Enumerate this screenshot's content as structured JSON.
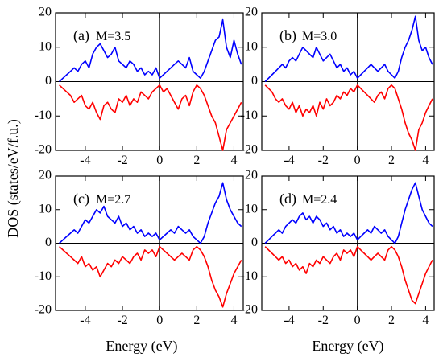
{
  "figure": {
    "ylabel": "DOS (states/eV/f.u.)",
    "xlabel": "Energy (eV)"
  },
  "chart_data": [
    {
      "type": "line",
      "panel_label": "(a)",
      "annotation": "M=3.5",
      "xlabel": "",
      "ylabel": "",
      "xlim": [
        -5.6,
        4.5
      ],
      "ylim": [
        -20,
        20
      ],
      "xticks": [
        -4,
        -2,
        0,
        2,
        4
      ],
      "yticks": [
        -20,
        -10,
        0,
        10,
        20
      ],
      "xtick_labels": [
        "-4",
        "-2",
        "0",
        "2",
        "4"
      ],
      "ytick_labels": [
        "-20",
        "-10",
        "0",
        "10",
        "20"
      ],
      "colors": {
        "up": "#0000ff",
        "down": "#ff0000"
      },
      "x": [
        -5.4,
        -5.2,
        -5.0,
        -4.8,
        -4.6,
        -4.4,
        -4.2,
        -4.0,
        -3.8,
        -3.6,
        -3.4,
        -3.2,
        -3.0,
        -2.8,
        -2.6,
        -2.4,
        -2.2,
        -2.0,
        -1.8,
        -1.6,
        -1.4,
        -1.2,
        -1.0,
        -0.8,
        -0.6,
        -0.4,
        -0.2,
        0.0,
        0.2,
        0.4,
        0.6,
        0.8,
        1.0,
        1.2,
        1.4,
        1.6,
        1.8,
        2.0,
        2.2,
        2.4,
        2.6,
        2.8,
        3.0,
        3.2,
        3.4,
        3.6,
        3.8,
        4.0,
        4.2,
        4.4
      ],
      "series": [
        {
          "values": [
            0,
            1,
            2,
            3,
            4,
            3,
            5,
            6,
            4,
            8,
            10,
            11,
            9,
            7,
            8,
            10,
            6,
            5,
            4,
            6,
            5,
            3,
            4,
            2,
            3,
            2,
            4,
            1,
            2,
            3,
            4,
            5,
            6,
            5,
            4,
            7,
            3,
            2,
            1,
            3,
            6,
            9,
            12,
            13,
            18,
            10,
            7,
            12,
            8,
            5
          ]
        },
        {
          "values": [
            -1,
            -2,
            -3,
            -4,
            -6,
            -5,
            -4,
            -7,
            -8,
            -6,
            -9,
            -11,
            -7,
            -6,
            -8,
            -9,
            -5,
            -6,
            -4,
            -7,
            -5,
            -6,
            -3,
            -4,
            -5,
            -3,
            -2,
            -1,
            -3,
            -2,
            -4,
            -6,
            -8,
            -5,
            -4,
            -7,
            -3,
            -1,
            -2,
            -4,
            -7,
            -10,
            -12,
            -16,
            -20,
            -14,
            -12,
            -10,
            -8,
            -6
          ]
        }
      ]
    },
    {
      "type": "line",
      "panel_label": "(b)",
      "annotation": "M=3.0",
      "xlabel": "",
      "ylabel": "",
      "xlim": [
        -5.6,
        4.5
      ],
      "ylim": [
        -20,
        20
      ],
      "xticks": [
        -4,
        -2,
        0,
        2,
        4
      ],
      "yticks": [
        -20,
        -10,
        0,
        10,
        20
      ],
      "xtick_labels": [
        "-4",
        "-2",
        "0",
        "2",
        "4"
      ],
      "ytick_labels": [
        "-20",
        "-10",
        "0",
        "10",
        "20"
      ],
      "colors": {
        "up": "#0000ff",
        "down": "#ff0000"
      },
      "x": [
        -5.4,
        -5.2,
        -5.0,
        -4.8,
        -4.6,
        -4.4,
        -4.2,
        -4.0,
        -3.8,
        -3.6,
        -3.4,
        -3.2,
        -3.0,
        -2.8,
        -2.6,
        -2.4,
        -2.2,
        -2.0,
        -1.8,
        -1.6,
        -1.4,
        -1.2,
        -1.0,
        -0.8,
        -0.6,
        -0.4,
        -0.2,
        0.0,
        0.2,
        0.4,
        0.6,
        0.8,
        1.0,
        1.2,
        1.4,
        1.6,
        1.8,
        2.0,
        2.2,
        2.4,
        2.6,
        2.8,
        3.0,
        3.2,
        3.4,
        3.6,
        3.8,
        4.0,
        4.2,
        4.4
      ],
      "series": [
        {
          "values": [
            0,
            1,
            2,
            3,
            4,
            5,
            4,
            6,
            7,
            6,
            8,
            10,
            9,
            8,
            7,
            10,
            8,
            6,
            7,
            8,
            6,
            4,
            5,
            3,
            4,
            2,
            3,
            1,
            2,
            3,
            4,
            5,
            4,
            3,
            4,
            5,
            3,
            2,
            1,
            3,
            7,
            10,
            12,
            15,
            19,
            12,
            9,
            10,
            7,
            5
          ]
        },
        {
          "values": [
            -1,
            -2,
            -3,
            -5,
            -6,
            -5,
            -7,
            -8,
            -6,
            -9,
            -7,
            -10,
            -8,
            -9,
            -7,
            -10,
            -6,
            -8,
            -5,
            -7,
            -6,
            -4,
            -5,
            -3,
            -4,
            -2,
            -3,
            -1,
            -2,
            -3,
            -4,
            -5,
            -6,
            -4,
            -3,
            -5,
            -2,
            -1,
            -2,
            -5,
            -8,
            -12,
            -15,
            -17,
            -20,
            -14,
            -12,
            -9,
            -7,
            -5
          ]
        }
      ]
    },
    {
      "type": "line",
      "panel_label": "(c)",
      "annotation": "M=2.7",
      "xlabel": "",
      "ylabel": "",
      "xlim": [
        -5.6,
        4.5
      ],
      "ylim": [
        -20,
        20
      ],
      "xticks": [
        -4,
        -2,
        0,
        2,
        4
      ],
      "yticks": [
        -20,
        -10,
        0,
        10,
        20
      ],
      "xtick_labels": [
        "-4",
        "-2",
        "0",
        "2",
        "4"
      ],
      "ytick_labels": [
        "-20",
        "-10",
        "0",
        "10",
        "20"
      ],
      "colors": {
        "up": "#0000ff",
        "down": "#ff0000"
      },
      "x": [
        -5.4,
        -5.2,
        -5.0,
        -4.8,
        -4.6,
        -4.4,
        -4.2,
        -4.0,
        -3.8,
        -3.6,
        -3.4,
        -3.2,
        -3.0,
        -2.8,
        -2.6,
        -2.4,
        -2.2,
        -2.0,
        -1.8,
        -1.6,
        -1.4,
        -1.2,
        -1.0,
        -0.8,
        -0.6,
        -0.4,
        -0.2,
        0.0,
        0.2,
        0.4,
        0.6,
        0.8,
        1.0,
        1.2,
        1.4,
        1.6,
        1.8,
        2.0,
        2.2,
        2.4,
        2.6,
        2.8,
        3.0,
        3.2,
        3.4,
        3.6,
        3.8,
        4.0,
        4.2,
        4.4
      ],
      "series": [
        {
          "values": [
            0,
            1,
            2,
            3,
            4,
            3,
            5,
            7,
            6,
            8,
            10,
            9,
            11,
            8,
            7,
            6,
            8,
            5,
            6,
            4,
            5,
            3,
            4,
            2,
            3,
            2,
            3,
            1,
            2,
            3,
            4,
            3,
            5,
            4,
            3,
            4,
            2,
            1,
            0,
            2,
            6,
            9,
            12,
            14,
            18,
            13,
            10,
            8,
            6,
            5
          ]
        },
        {
          "values": [
            -1,
            -2,
            -3,
            -4,
            -5,
            -6,
            -4,
            -7,
            -6,
            -8,
            -7,
            -10,
            -8,
            -6,
            -7,
            -5,
            -6,
            -4,
            -5,
            -6,
            -4,
            -3,
            -5,
            -2,
            -3,
            -2,
            -4,
            -1,
            -2,
            -3,
            -4,
            -5,
            -4,
            -3,
            -4,
            -5,
            -2,
            -1,
            -2,
            -4,
            -7,
            -11,
            -14,
            -16,
            -19,
            -15,
            -12,
            -9,
            -7,
            -5
          ]
        }
      ]
    },
    {
      "type": "line",
      "panel_label": "(d)",
      "annotation": "M=2.4",
      "xlabel": "",
      "ylabel": "",
      "xlim": [
        -5.6,
        4.5
      ],
      "ylim": [
        -20,
        20
      ],
      "xticks": [
        -4,
        -2,
        0,
        2,
        4
      ],
      "yticks": [
        -20,
        -10,
        0,
        10,
        20
      ],
      "xtick_labels": [
        "-4",
        "-2",
        "0",
        "2",
        "4"
      ],
      "ytick_labels": [
        "-20",
        "-10",
        "0",
        "10",
        "20"
      ],
      "colors": {
        "up": "#0000ff",
        "down": "#ff0000"
      },
      "x": [
        -5.4,
        -5.2,
        -5.0,
        -4.8,
        -4.6,
        -4.4,
        -4.2,
        -4.0,
        -3.8,
        -3.6,
        -3.4,
        -3.2,
        -3.0,
        -2.8,
        -2.6,
        -2.4,
        -2.2,
        -2.0,
        -1.8,
        -1.6,
        -1.4,
        -1.2,
        -1.0,
        -0.8,
        -0.6,
        -0.4,
        -0.2,
        0.0,
        0.2,
        0.4,
        0.6,
        0.8,
        1.0,
        1.2,
        1.4,
        1.6,
        1.8,
        2.0,
        2.2,
        2.4,
        2.6,
        2.8,
        3.0,
        3.2,
        3.4,
        3.6,
        3.8,
        4.0,
        4.2,
        4.4
      ],
      "series": [
        {
          "values": [
            0,
            1,
            2,
            3,
            4,
            3,
            5,
            6,
            7,
            6,
            8,
            9,
            7,
            8,
            6,
            8,
            7,
            5,
            6,
            4,
            5,
            3,
            4,
            2,
            3,
            2,
            3,
            1,
            2,
            3,
            4,
            3,
            5,
            4,
            3,
            4,
            2,
            1,
            0,
            2,
            6,
            10,
            13,
            16,
            18,
            14,
            10,
            8,
            6,
            5
          ]
        },
        {
          "values": [
            -1,
            -2,
            -3,
            -4,
            -5,
            -4,
            -6,
            -5,
            -7,
            -6,
            -8,
            -7,
            -9,
            -6,
            -7,
            -5,
            -6,
            -4,
            -5,
            -6,
            -4,
            -3,
            -5,
            -2,
            -3,
            -2,
            -4,
            -1,
            -2,
            -3,
            -4,
            -5,
            -4,
            -3,
            -4,
            -5,
            -2,
            -1,
            -2,
            -4,
            -7,
            -11,
            -14,
            -17,
            -18,
            -15,
            -12,
            -9,
            -7,
            -5
          ]
        }
      ]
    }
  ]
}
